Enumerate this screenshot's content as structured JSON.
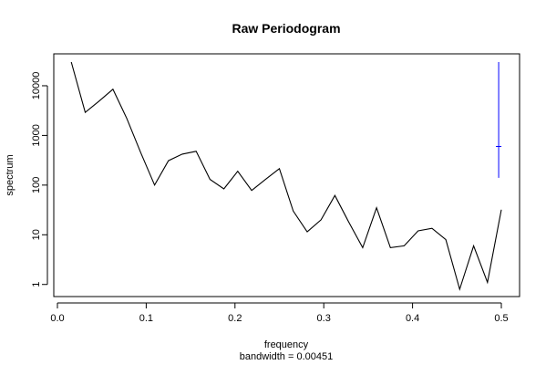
{
  "chart_data": {
    "type": "line",
    "title": "Raw Periodogram",
    "xlabel": "frequency",
    "subtitle": "bandwidth = 0.00451",
    "ylabel": "spectrum",
    "y_scale": "log",
    "xlim": [
      0,
      0.5
    ],
    "ylim": [
      0.8,
      30000
    ],
    "x_ticks": [
      0.0,
      0.1,
      0.2,
      0.3,
      0.4,
      0.5
    ],
    "x_tick_labels": [
      "0.0",
      "0.1",
      "0.2",
      "0.3",
      "0.4",
      "0.5"
    ],
    "y_ticks": [
      1,
      10,
      100,
      1000,
      10000
    ],
    "y_tick_labels": [
      "1",
      "10",
      "100",
      "1000",
      "10000"
    ],
    "grid": false,
    "line_color": "#000000",
    "ci_color": "#0000ff",
    "series": [
      {
        "x": [
          0.0156,
          0.0313,
          0.0469,
          0.0625,
          0.0781,
          0.0938,
          0.1094,
          0.125,
          0.1406,
          0.1563,
          0.1719,
          0.1875,
          0.2031,
          0.2188,
          0.2344,
          0.25,
          0.2656,
          0.2813,
          0.2969,
          0.3125,
          0.3281,
          0.3438,
          0.3594,
          0.375,
          0.3906,
          0.4063,
          0.4219,
          0.4375,
          0.4531,
          0.4688,
          0.4844,
          0.5
        ],
        "y": [
          30000,
          2900,
          4900,
          8500,
          2200,
          450,
          100,
          310,
          420,
          480,
          130,
          84,
          190,
          78,
          130,
          215,
          30,
          11.5,
          20,
          62,
          18,
          5.5,
          35,
          5.5,
          6.0,
          12,
          13.5,
          8.0,
          0.8,
          6.0,
          1.1,
          32
        ]
      }
    ],
    "ci_bar": {
      "x": 0.497,
      "center": 600,
      "low": 140,
      "high": 30000
    }
  }
}
